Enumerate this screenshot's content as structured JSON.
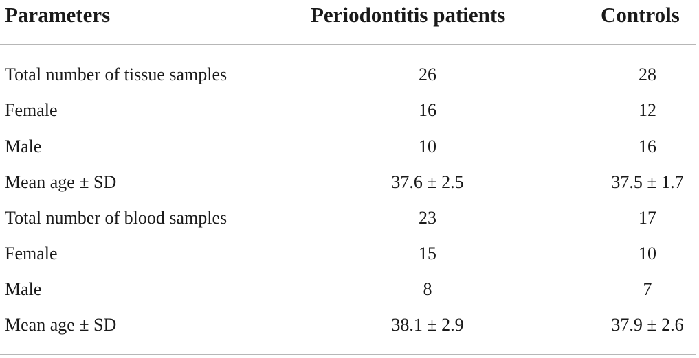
{
  "table": {
    "headers": {
      "parameters": "Parameters",
      "periodontitis": "Periodontitis patients",
      "controls": "Controls"
    },
    "rows": [
      {
        "parameter": "Total number of tissue samples",
        "periodontitis": "26",
        "controls": "28"
      },
      {
        "parameter": "Female",
        "periodontitis": "16",
        "controls": "12"
      },
      {
        "parameter": "Male",
        "periodontitis": "10",
        "controls": "16"
      },
      {
        "parameter": "Mean age ± SD",
        "periodontitis": "37.6 ± 2.5",
        "controls": "37.5 ± 1.7"
      },
      {
        "parameter": "Total number of blood samples",
        "periodontitis": "23",
        "controls": "17"
      },
      {
        "parameter": "Female",
        "periodontitis": "15",
        "controls": "10"
      },
      {
        "parameter": "Male",
        "periodontitis": "8",
        "controls": "7"
      },
      {
        "parameter": "Mean age ± SD",
        "periodontitis": "38.1 ± 2.9",
        "controls": "37.9 ± 2.6"
      }
    ]
  }
}
